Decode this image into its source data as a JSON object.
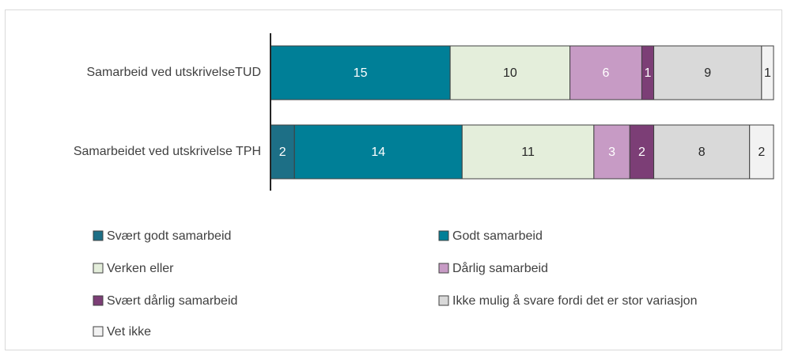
{
  "chart_data": {
    "type": "stacked-bar-horizontal",
    "categories": [
      "Samarbeid ved utskrivelseTUD",
      "Samarbeidet ved utskrivelse TPH"
    ],
    "xlim": [
      0,
      42
    ],
    "legend": "bottom",
    "series": [
      {
        "name": "Svært godt samarbeid",
        "color": "#1d6f86",
        "values": [
          0,
          2
        ]
      },
      {
        "name": "Godt samarbeid",
        "color": "#007f97",
        "values": [
          15,
          14
        ]
      },
      {
        "name": "Verken eller",
        "color": "#e4eedb",
        "values": [
          10,
          11
        ]
      },
      {
        "name": "Dårlig samarbeid",
        "color": "#c79bc5",
        "values": [
          6,
          3
        ]
      },
      {
        "name": "Svært dårlig samarbeid",
        "color": "#7c3e76",
        "values": [
          1,
          2
        ]
      },
      {
        "name": "Ikke mulig å svare fordi det er stor variasjon",
        "color": "#d9d9d9",
        "values": [
          9,
          8
        ]
      },
      {
        "name": "Vet ikke",
        "color": "#f2f2f2",
        "values": [
          1,
          2
        ]
      }
    ]
  }
}
